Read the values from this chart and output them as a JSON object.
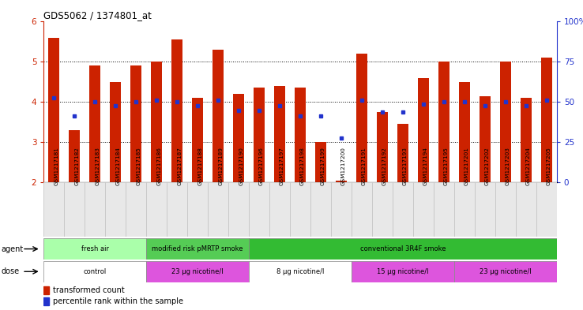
{
  "title": "GDS5062 / 1374801_at",
  "gsm_labels": [
    "GSM1217181",
    "GSM1217182",
    "GSM1217183",
    "GSM1217184",
    "GSM1217185",
    "GSM1217186",
    "GSM1217187",
    "GSM1217188",
    "GSM1217189",
    "GSM1217190",
    "GSM1217196",
    "GSM1217197",
    "GSM1217198",
    "GSM1217199",
    "GSM1217200",
    "GSM1217191",
    "GSM1217192",
    "GSM1217193",
    "GSM1217194",
    "GSM1217195",
    "GSM1217201",
    "GSM1217202",
    "GSM1217203",
    "GSM1217204",
    "GSM1217205"
  ],
  "bar_values": [
    5.6,
    3.3,
    4.9,
    4.5,
    4.9,
    5.0,
    5.55,
    4.1,
    5.3,
    4.2,
    4.35,
    4.4,
    4.35,
    3.0,
    2.05,
    5.2,
    3.75,
    3.45,
    4.6,
    5.0,
    4.5,
    4.15,
    5.0,
    4.1,
    5.1
  ],
  "percentile_values": [
    4.1,
    3.65,
    4.0,
    3.9,
    4.0,
    4.05,
    4.0,
    3.9,
    4.05,
    3.8,
    3.8,
    3.9,
    3.65,
    3.65,
    3.1,
    4.05,
    3.75,
    3.75,
    3.95,
    4.0,
    4.0,
    3.9,
    4.0,
    3.9,
    4.05
  ],
  "ylim": [
    2,
    6
  ],
  "yticks": [
    2,
    3,
    4,
    5,
    6
  ],
  "right_ytick_vals": [
    0,
    25,
    50,
    75,
    100
  ],
  "right_ytick_labels": [
    "0",
    "25",
    "50",
    "75",
    "100%"
  ],
  "bar_color": "#CC2200",
  "dot_color": "#2233CC",
  "bar_bottom": 2.0,
  "agent_groups": [
    {
      "label": "fresh air",
      "start": 0,
      "end": 5,
      "color": "#AAFFAA"
    },
    {
      "label": "modified risk pMRTP smoke",
      "start": 5,
      "end": 10,
      "color": "#55CC55"
    },
    {
      "label": "conventional 3R4F smoke",
      "start": 10,
      "end": 25,
      "color": "#33BB33"
    }
  ],
  "dose_groups": [
    {
      "label": "control",
      "start": 0,
      "end": 5,
      "color": "#FFFFFF"
    },
    {
      "label": "23 μg nicotine/l",
      "start": 5,
      "end": 10,
      "color": "#DD55DD"
    },
    {
      "label": "8 μg nicotine/l",
      "start": 10,
      "end": 15,
      "color": "#FFFFFF"
    },
    {
      "label": "15 μg nicotine/l",
      "start": 15,
      "end": 20,
      "color": "#DD55DD"
    },
    {
      "label": "23 μg nicotine/l",
      "start": 20,
      "end": 25,
      "color": "#DD55DD"
    }
  ],
  "legend_red_label": "transformed count",
  "legend_blue_label": "percentile rank within the sample",
  "agent_label": "agent",
  "dose_label": "dose"
}
